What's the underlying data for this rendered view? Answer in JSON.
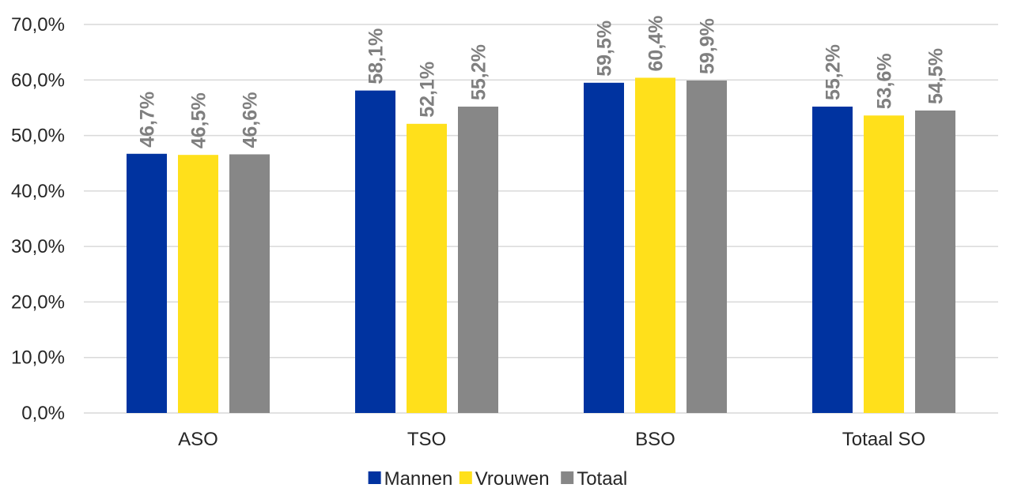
{
  "chart_data": {
    "type": "bar",
    "categories": [
      "ASO",
      "TSO",
      "BSO",
      "Totaal SO"
    ],
    "series": [
      {
        "name": "Mannen",
        "color": "#0033a0",
        "values": [
          46.7,
          58.1,
          59.5,
          55.2
        ],
        "labels": [
          "46,7%",
          "58,1%",
          "59,5%",
          "55,2%"
        ]
      },
      {
        "name": "Vrouwen",
        "color": "#ffe01b",
        "values": [
          46.5,
          52.1,
          60.4,
          53.6
        ],
        "labels": [
          "46,5%",
          "52,1%",
          "60,4%",
          "53,6%"
        ]
      },
      {
        "name": "Totaal",
        "color": "#878787",
        "values": [
          46.6,
          55.2,
          59.9,
          54.5
        ],
        "labels": [
          "46,6%",
          "55,2%",
          "59,9%",
          "54,5%"
        ]
      }
    ],
    "ylim": [
      0,
      70
    ],
    "yticks": [
      0,
      10,
      20,
      30,
      40,
      50,
      60,
      70
    ],
    "ytick_labels": [
      "0,0%",
      "10,0%",
      "20,0%",
      "30,0%",
      "40,0%",
      "50,0%",
      "60,0%",
      "70,0%"
    ],
    "grid": true,
    "legend_position": "bottom",
    "data_label_color": "#7f7f7f"
  }
}
